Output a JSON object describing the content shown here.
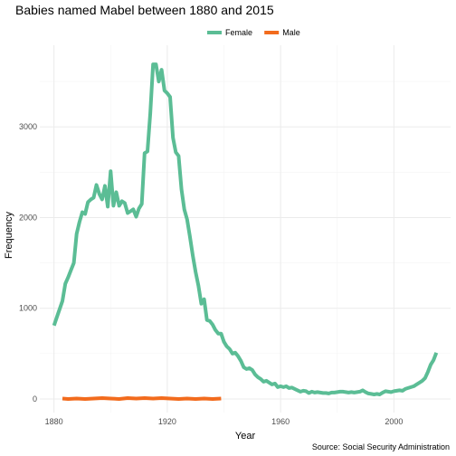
{
  "chart_data": {
    "type": "line",
    "title": "Babies named Mabel between 1880 and 2015",
    "xlabel": "Year",
    "ylabel": "Frequency",
    "caption": "Source: Social Security Administration",
    "xlim": [
      1875,
      2020
    ],
    "ylim": [
      -150,
      3900
    ],
    "x_ticks": [
      1880,
      1920,
      1960,
      2000
    ],
    "x_tick_labels": [
      "1880",
      "1920",
      "1960",
      "2000"
    ],
    "x_minor_ticks": [
      1900,
      1940,
      1980
    ],
    "y_ticks": [
      0,
      1000,
      2000,
      3000
    ],
    "y_tick_labels": [
      "0",
      "1000",
      "2000",
      "3000"
    ],
    "y_minor_ticks": [
      500,
      1500,
      2500,
      3500
    ],
    "grid": true,
    "legend_position": "top",
    "series": [
      {
        "name": "Female",
        "color": "#5bbd95",
        "x": [
          1880,
          1881,
          1882,
          1883,
          1884,
          1885,
          1886,
          1887,
          1888,
          1889,
          1890,
          1891,
          1892,
          1893,
          1894,
          1895,
          1896,
          1897,
          1898,
          1899,
          1900,
          1901,
          1902,
          1903,
          1904,
          1905,
          1906,
          1907,
          1908,
          1909,
          1910,
          1911,
          1912,
          1913,
          1914,
          1915,
          1916,
          1917,
          1918,
          1919,
          1920,
          1921,
          1922,
          1923,
          1924,
          1925,
          1926,
          1927,
          1928,
          1929,
          1930,
          1931,
          1932,
          1933,
          1934,
          1935,
          1936,
          1937,
          1938,
          1939,
          1940,
          1941,
          1942,
          1943,
          1944,
          1945,
          1946,
          1947,
          1948,
          1949,
          1950,
          1951,
          1952,
          1953,
          1954,
          1955,
          1956,
          1957,
          1958,
          1959,
          1960,
          1961,
          1962,
          1963,
          1964,
          1965,
          1966,
          1967,
          1968,
          1969,
          1970,
          1971,
          1972,
          1973,
          1974,
          1975,
          1976,
          1977,
          1978,
          1979,
          1980,
          1981,
          1982,
          1983,
          1984,
          1985,
          1986,
          1987,
          1988,
          1989,
          1990,
          1991,
          1992,
          1993,
          1994,
          1995,
          1996,
          1997,
          1998,
          1999,
          2000,
          2001,
          2002,
          2003,
          2004,
          2005,
          2006,
          2007,
          2008,
          2009,
          2010,
          2011,
          2012,
          2013,
          2014,
          2015
        ],
        "values": [
          810,
          900,
          990,
          1080,
          1270,
          1340,
          1420,
          1500,
          1820,
          1950,
          2060,
          2040,
          2170,
          2200,
          2220,
          2360,
          2260,
          2200,
          2350,
          2120,
          2510,
          2130,
          2280,
          2130,
          2180,
          2160,
          2050,
          2070,
          2090,
          2010,
          2100,
          2150,
          2710,
          2730,
          3150,
          3690,
          3690,
          3500,
          3630,
          3400,
          3370,
          3330,
          2880,
          2720,
          2680,
          2310,
          2090,
          1980,
          1790,
          1580,
          1400,
          1250,
          1050,
          1100,
          870,
          860,
          820,
          760,
          720,
          720,
          630,
          580,
          550,
          500,
          510,
          470,
          420,
          350,
          330,
          340,
          320,
          270,
          240,
          220,
          190,
          200,
          180,
          160,
          170,
          130,
          140,
          130,
          140,
          120,
          125,
          110,
          95,
          80,
          90,
          85,
          65,
          80,
          70,
          75,
          70,
          65,
          65,
          60,
          70,
          70,
          75,
          80,
          80,
          75,
          70,
          75,
          70,
          75,
          80,
          95,
          75,
          60,
          55,
          50,
          55,
          50,
          70,
          85,
          80,
          75,
          85,
          90,
          95,
          90,
          110,
          120,
          130,
          140,
          160,
          180,
          200,
          230,
          300,
          380,
          430,
          510
        ]
      },
      {
        "name": "Male",
        "color": "#f26b1d",
        "x": [
          1883,
          1885,
          1888,
          1891,
          1894,
          1897,
          1900,
          1903,
          1906,
          1909,
          1912,
          1915,
          1918,
          1921,
          1924,
          1927,
          1930,
          1933,
          1936,
          1939
        ],
        "values": [
          5,
          0,
          5,
          0,
          5,
          10,
          5,
          0,
          10,
          5,
          10,
          5,
          10,
          5,
          0,
          5,
          0,
          5,
          0,
          5
        ]
      }
    ]
  }
}
